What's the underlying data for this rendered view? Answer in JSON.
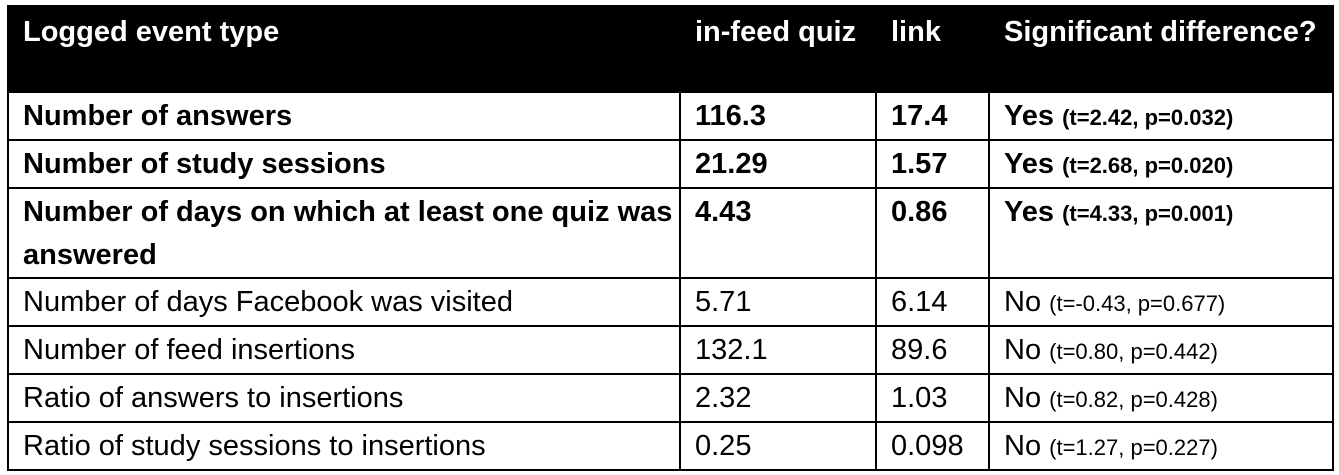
{
  "table": {
    "headers": [
      "Logged event type",
      "in-feed quiz",
      "link",
      "Significant difference?"
    ],
    "rows": [
      {
        "event": "Number of answers",
        "infeed": "116.3",
        "link": "17.4",
        "sig": "Yes",
        "stat": "(t=2.42, p=0.032)",
        "bold": true
      },
      {
        "event": "Number of study sessions",
        "infeed": "21.29",
        "link": "1.57",
        "sig": "Yes",
        "stat": "(t=2.68, p=0.020)",
        "bold": true
      },
      {
        "event": "Number of days on which at least one quiz was answered",
        "infeed": "4.43",
        "link": "0.86",
        "sig": "Yes",
        "stat": "(t=4.33, p=0.001)",
        "bold": true
      },
      {
        "event": "Number of days Facebook was visited",
        "infeed": "5.71",
        "link": "6.14",
        "sig": "No",
        "stat": "(t=-0.43, p=0.677)",
        "bold": false
      },
      {
        "event": "Number of feed insertions",
        "infeed": "132.1",
        "link": "89.6",
        "sig": "No",
        "stat": "(t=0.80, p=0.442)",
        "bold": false
      },
      {
        "event": "Ratio of answers to insertions",
        "infeed": "2.32",
        "link": "1.03",
        "sig": "No",
        "stat": "(t=0.82, p=0.428)",
        "bold": false
      },
      {
        "event": "Ratio of study sessions to insertions",
        "infeed": "0.25",
        "link": "0.098",
        "sig": "No",
        "stat": "(t=1.27, p=0.227)",
        "bold": false
      }
    ]
  }
}
